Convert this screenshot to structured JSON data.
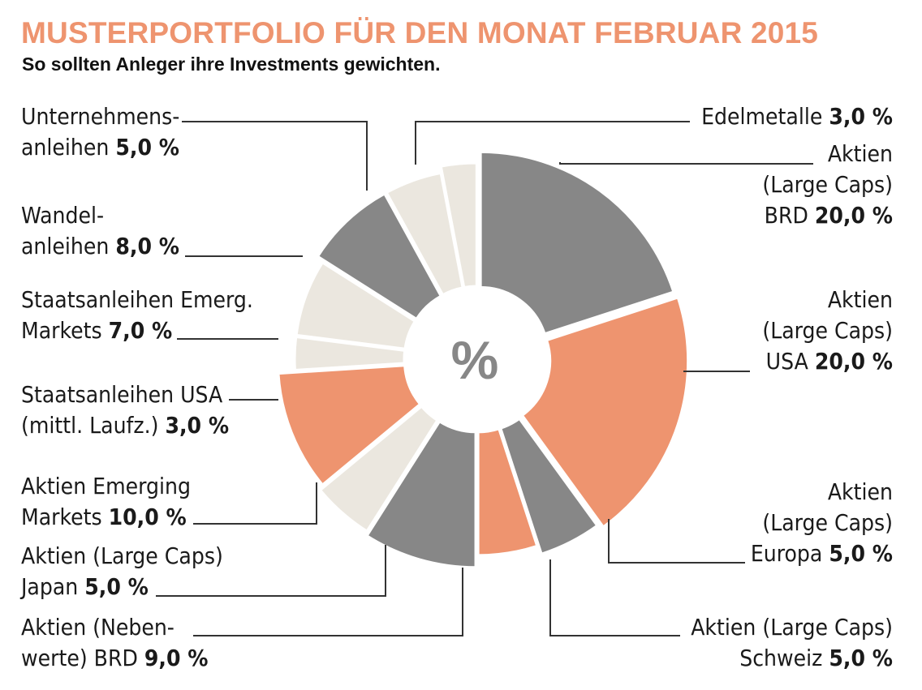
{
  "title": "MUSTERPORTFOLIO FÜR DEN MONAT FEBRUAR 2015",
  "subtitle": "So sollten Anleger ihre Investments gewichten.",
  "center_label": "%",
  "colors": {
    "accent": "#ee946f",
    "gray": "#878787",
    "light": "#ebe7df",
    "leader": "#333333"
  },
  "chart_data": {
    "type": "pie",
    "donut": true,
    "start": "top, clockwise",
    "unit": "%",
    "slices": [
      {
        "lines": [
          "Aktien",
          "(Large Caps)",
          "BRD"
        ],
        "value": 20.0,
        "value_label": "20,0 %",
        "color": "gray"
      },
      {
        "lines": [
          "Aktien",
          "(Large Caps)",
          "USA"
        ],
        "value": 20.0,
        "value_label": "20,0 %",
        "color": "accent"
      },
      {
        "lines": [
          "Aktien",
          "(Large Caps)",
          "Europa"
        ],
        "value": 5.0,
        "value_label": "5,0 %",
        "color": "gray"
      },
      {
        "lines": [
          "Aktien (Large Caps)",
          "Schweiz"
        ],
        "value": 5.0,
        "value_label": "5,0 %",
        "color": "accent"
      },
      {
        "lines": [
          "Aktien (Neben-",
          "werte) BRD"
        ],
        "value": 9.0,
        "value_label": "9,0 %",
        "color": "gray"
      },
      {
        "lines": [
          "Aktien (Large Caps)",
          "Japan"
        ],
        "value": 5.0,
        "value_label": "5,0 %",
        "color": "light"
      },
      {
        "lines": [
          "Aktien Emerging",
          "Markets"
        ],
        "value": 10.0,
        "value_label": "10,0 %",
        "color": "accent"
      },
      {
        "lines": [
          "Staatsanleihen USA",
          "(mittl. Laufz.)"
        ],
        "value": 3.0,
        "value_label": "3,0 %",
        "color": "light"
      },
      {
        "lines": [
          "Staatsanleihen Emerg.",
          "Markets"
        ],
        "value": 7.0,
        "value_label": "7,0 %",
        "color": "light"
      },
      {
        "lines": [
          "Wandel-",
          "anleihen"
        ],
        "value": 8.0,
        "value_label": "8,0 %",
        "color": "gray"
      },
      {
        "lines": [
          "Unternehmens-",
          "anleihen"
        ],
        "value": 5.0,
        "value_label": "5,0 %",
        "color": "light"
      },
      {
        "lines": [
          "Edelmetalle"
        ],
        "value": 3.0,
        "value_label": "3,0 %",
        "color": "light"
      }
    ]
  }
}
